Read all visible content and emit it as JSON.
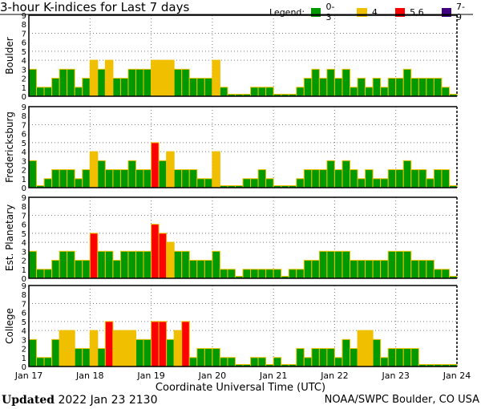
{
  "title": "3-hour K-indices for Last 7 days",
  "legend": {
    "label": "Legend:",
    "items": [
      {
        "label": "0-3",
        "color": "#009900"
      },
      {
        "label": "4",
        "color": "#f0c000"
      },
      {
        "label": "5,6",
        "color": "#ff0000"
      },
      {
        "label": "7-9",
        "color": "#400080"
      }
    ]
  },
  "footer": {
    "updated_label": "Updated",
    "updated_value": "2022 Jan 23 2130",
    "credit": "NOAA/SWPC Boulder, CO USA"
  },
  "chart_data": {
    "type": "bar",
    "title": "3-hour K-indices for Last 7 days",
    "xlabel": "Coordinate Universal Time (UTC)",
    "x_ticks": [
      "Jan 17",
      "Jan 18",
      "Jan 19",
      "Jan 20",
      "Jan 21",
      "Jan 22",
      "Jan 23",
      "Jan 24"
    ],
    "y_ticks": [
      "0",
      "1",
      "2",
      "3",
      "4",
      "5",
      "6",
      "7",
      "8",
      "9"
    ],
    "ylim": [
      0,
      9
    ],
    "grid_y": [
      4,
      5,
      7
    ],
    "interval_hours": 3,
    "panels": [
      {
        "name": "Boulder",
        "values": [
          3,
          1,
          1,
          2,
          3,
          3,
          1,
          2,
          4,
          3,
          4,
          2,
          2,
          3,
          3,
          3,
          4,
          4,
          4,
          3,
          3,
          2,
          2,
          2,
          4,
          1,
          0,
          0,
          0,
          1,
          1,
          1,
          0,
          0,
          0,
          1,
          2,
          3,
          2,
          3,
          2,
          3,
          1,
          2,
          1,
          2,
          1,
          2,
          2,
          3,
          2,
          2,
          2,
          2,
          1,
          0
        ]
      },
      {
        "name": "Fredericksburg",
        "values": [
          3,
          0,
          1,
          2,
          2,
          2,
          1,
          2,
          4,
          3,
          2,
          2,
          2,
          3,
          2,
          2,
          5,
          3,
          4,
          2,
          2,
          2,
          1,
          1,
          4,
          0,
          0,
          0,
          1,
          1,
          2,
          1,
          0,
          0,
          0,
          1,
          2,
          2,
          2,
          3,
          2,
          3,
          2,
          1,
          2,
          1,
          1,
          2,
          2,
          3,
          2,
          2,
          1,
          2,
          2,
          0
        ]
      },
      {
        "name": "Est. Planetary",
        "values": [
          3,
          1,
          1,
          2,
          3,
          3,
          2,
          2,
          5,
          3,
          3,
          2,
          3,
          3,
          3,
          3,
          6,
          5,
          4,
          3,
          3,
          2,
          2,
          2,
          3,
          1,
          1,
          0,
          1,
          1,
          1,
          1,
          1,
          0,
          1,
          1,
          2,
          2,
          3,
          3,
          3,
          3,
          2,
          2,
          2,
          2,
          2,
          3,
          3,
          3,
          2,
          2,
          2,
          1,
          1,
          0
        ]
      },
      {
        "name": "College",
        "values": [
          3,
          1,
          1,
          3,
          4,
          4,
          2,
          2,
          4,
          2,
          5,
          4,
          4,
          4,
          3,
          3,
          5,
          5,
          3,
          4,
          5,
          1,
          2,
          2,
          2,
          1,
          1,
          0,
          0,
          1,
          1,
          0,
          1,
          0,
          0,
          2,
          1,
          2,
          2,
          2,
          1,
          3,
          2,
          4,
          4,
          3,
          1,
          2,
          2,
          2,
          2,
          0,
          0,
          0,
          0,
          0
        ]
      }
    ]
  }
}
